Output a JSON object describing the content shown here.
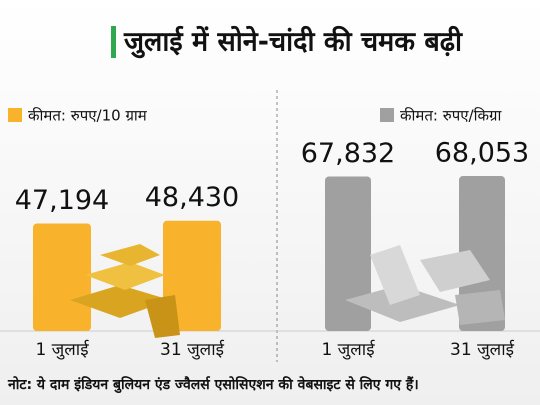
{
  "title": "जुलाई में सोने-चांदी की चमक बढ़ी",
  "note": "नोट: ये दाम इंडियन बुलियन एंड ज्वैलर्स एसोसिएशन की वेबसाइट से लिए गए हैं।",
  "chart_data": [
    {
      "type": "bar",
      "categories": [
        "1 जुलाई",
        "31 जुलाई"
      ],
      "series": [
        {
          "name": "कीमत: रुपए/10 ग्राम",
          "color": "#f9b22c",
          "values": [
            47194,
            48430
          ],
          "value_labels": [
            "47,194",
            "48,430"
          ]
        }
      ]
    },
    {
      "type": "bar",
      "categories": [
        "1 जुलाई",
        "31 जुलाई"
      ],
      "series": [
        {
          "name": "कीमत: रुपए/किग्रा",
          "color": "#a0a0a0",
          "values": [
            67832,
            68053
          ],
          "value_labels": [
            "67,832",
            "68,053"
          ]
        }
      ]
    }
  ]
}
